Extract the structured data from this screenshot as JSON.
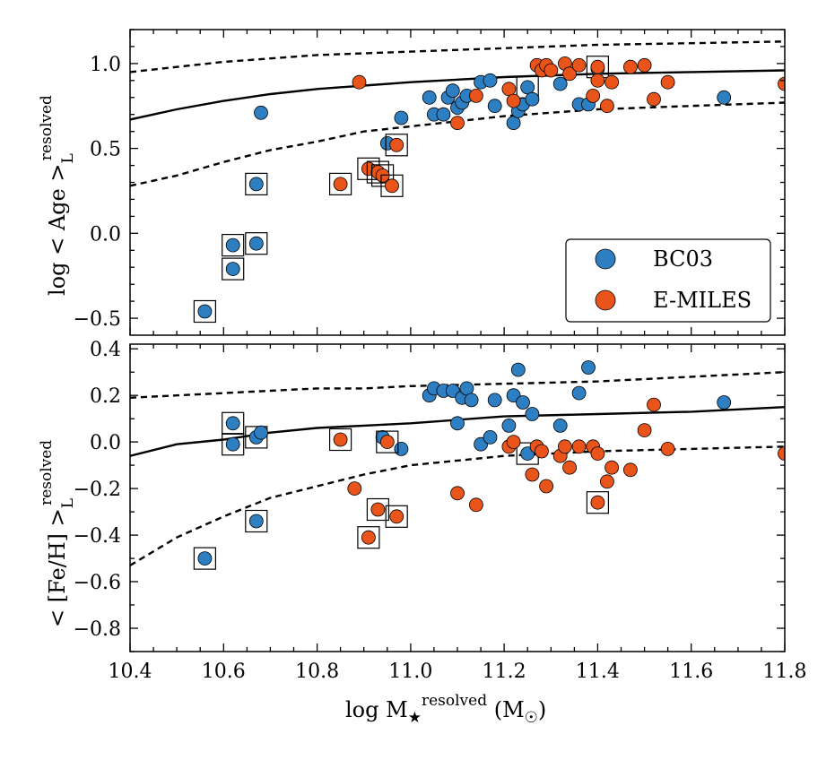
{
  "colors": {
    "bc03": "#2e7fc2",
    "emiles": "#e8541a",
    "edge": "#000000",
    "line": "#000000"
  },
  "chart_data": [
    {
      "type": "scatter",
      "panel": "top",
      "ylabel": {
        "main": "log < Age >",
        "sub": "L",
        "sup": "resolved"
      },
      "xlim": [
        10.4,
        11.8
      ],
      "ylim": [
        -0.6,
        1.2
      ],
      "yticks": [
        {
          "v": -0.5,
          "label": "−0.5"
        },
        {
          "v": 0.0,
          "label": "0.0"
        },
        {
          "v": 0.5,
          "label": "0.5"
        },
        {
          "v": 1.0,
          "label": "1.0"
        }
      ],
      "legend": {
        "position": "lower-right",
        "entries": [
          {
            "label": "BC03",
            "series": "bc03"
          },
          {
            "label": "E-MILES",
            "series": "emiles"
          }
        ]
      },
      "trend": {
        "median": [
          [
            10.4,
            0.67
          ],
          [
            10.5,
            0.73
          ],
          [
            10.6,
            0.78
          ],
          [
            10.7,
            0.82
          ],
          [
            10.8,
            0.85
          ],
          [
            10.9,
            0.87
          ],
          [
            11.0,
            0.89
          ],
          [
            11.2,
            0.92
          ],
          [
            11.4,
            0.94
          ],
          [
            11.6,
            0.95
          ],
          [
            11.8,
            0.96
          ]
        ],
        "upper": [
          [
            10.4,
            0.95
          ],
          [
            10.5,
            0.98
          ],
          [
            10.6,
            1.01
          ],
          [
            10.7,
            1.03
          ],
          [
            10.8,
            1.05
          ],
          [
            10.9,
            1.06
          ],
          [
            11.0,
            1.07
          ],
          [
            11.2,
            1.09
          ],
          [
            11.4,
            1.11
          ],
          [
            11.6,
            1.12
          ],
          [
            11.8,
            1.13
          ]
        ],
        "lower": [
          [
            10.4,
            0.28
          ],
          [
            10.5,
            0.34
          ],
          [
            10.6,
            0.42
          ],
          [
            10.7,
            0.49
          ],
          [
            10.8,
            0.54
          ],
          [
            10.9,
            0.6
          ],
          [
            11.0,
            0.63
          ],
          [
            11.2,
            0.69
          ],
          [
            11.4,
            0.73
          ],
          [
            11.6,
            0.75
          ],
          [
            11.8,
            0.77
          ]
        ]
      },
      "series": [
        {
          "name": "BC03",
          "key": "bc03",
          "points": [
            [
              10.56,
              -0.46,
              1
            ],
            [
              10.62,
              -0.07,
              1
            ],
            [
              10.62,
              -0.21,
              1
            ],
            [
              10.67,
              0.29,
              1
            ],
            [
              10.67,
              -0.06,
              1
            ],
            [
              10.68,
              0.71,
              0
            ],
            [
              10.95,
              0.53,
              0
            ],
            [
              10.98,
              0.68,
              0
            ],
            [
              11.04,
              0.8,
              0
            ],
            [
              11.05,
              0.7,
              0
            ],
            [
              11.07,
              0.7,
              0
            ],
            [
              11.08,
              0.8,
              0
            ],
            [
              11.09,
              0.84,
              0
            ],
            [
              11.1,
              0.74,
              0
            ],
            [
              11.11,
              0.77,
              0
            ],
            [
              11.12,
              0.81,
              0
            ],
            [
              11.15,
              0.89,
              0
            ],
            [
              11.17,
              0.9,
              0
            ],
            [
              11.18,
              0.75,
              0
            ],
            [
              11.22,
              0.65,
              0
            ],
            [
              11.23,
              0.72,
              0
            ],
            [
              11.24,
              0.76,
              0
            ],
            [
              11.25,
              0.86,
              1
            ],
            [
              11.26,
              0.79,
              0
            ],
            [
              11.32,
              0.88,
              0
            ],
            [
              11.36,
              0.76,
              0
            ],
            [
              11.38,
              0.76,
              0
            ],
            [
              11.4,
              0.97,
              0
            ],
            [
              11.67,
              0.8,
              0
            ]
          ]
        },
        {
          "name": "E-MILES",
          "key": "emiles",
          "points": [
            [
              10.85,
              0.29,
              1
            ],
            [
              10.89,
              0.89,
              0
            ],
            [
              10.91,
              0.38,
              1
            ],
            [
              10.93,
              0.36,
              1
            ],
            [
              10.94,
              0.34,
              1
            ],
            [
              10.96,
              0.28,
              1
            ],
            [
              10.97,
              0.52,
              1
            ],
            [
              11.1,
              0.65,
              0
            ],
            [
              11.14,
              0.81,
              0
            ],
            [
              11.21,
              0.85,
              0
            ],
            [
              11.22,
              0.78,
              0
            ],
            [
              11.27,
              0.99,
              0
            ],
            [
              11.28,
              0.96,
              0
            ],
            [
              11.29,
              0.99,
              0
            ],
            [
              11.3,
              0.96,
              0
            ],
            [
              11.33,
              1.0,
              0
            ],
            [
              11.34,
              0.94,
              0
            ],
            [
              11.36,
              0.99,
              0
            ],
            [
              11.39,
              0.81,
              0
            ],
            [
              11.4,
              0.98,
              1
            ],
            [
              11.4,
              0.9,
              0
            ],
            [
              11.42,
              0.75,
              0
            ],
            [
              11.43,
              0.89,
              0
            ],
            [
              11.47,
              0.98,
              0
            ],
            [
              11.5,
              0.99,
              0
            ],
            [
              11.52,
              0.79,
              0
            ],
            [
              11.55,
              0.89,
              0
            ],
            [
              11.8,
              0.88,
              0
            ]
          ]
        }
      ]
    },
    {
      "type": "scatter",
      "panel": "bottom",
      "xlabel": {
        "main": "log M",
        "star": "★",
        "sup": "resolved",
        "unit": " (M",
        "sun": "☉",
        "close": ")"
      },
      "ylabel": {
        "main": "< [Fe/H] >",
        "sub": "L",
        "sup": "resolved"
      },
      "xlim": [
        10.4,
        11.8
      ],
      "ylim": [
        -0.9,
        0.42
      ],
      "xticks": [
        {
          "v": 10.4,
          "label": "10.4"
        },
        {
          "v": 10.6,
          "label": "10.6"
        },
        {
          "v": 10.8,
          "label": "10.8"
        },
        {
          "v": 11.0,
          "label": "11.0"
        },
        {
          "v": 11.2,
          "label": "11.2"
        },
        {
          "v": 11.4,
          "label": "11.4"
        },
        {
          "v": 11.6,
          "label": "11.6"
        },
        {
          "v": 11.8,
          "label": "11.8"
        }
      ],
      "yticks": [
        {
          "v": -0.8,
          "label": "−0.8"
        },
        {
          "v": -0.6,
          "label": "−0.6"
        },
        {
          "v": -0.4,
          "label": "−0.4"
        },
        {
          "v": -0.2,
          "label": "−0.2"
        },
        {
          "v": 0.0,
          "label": "0.0"
        },
        {
          "v": 0.2,
          "label": "0.2"
        },
        {
          "v": 0.4,
          "label": "0.4"
        }
      ],
      "trend": {
        "median": [
          [
            10.4,
            -0.06
          ],
          [
            10.5,
            -0.01
          ],
          [
            10.6,
            0.01
          ],
          [
            10.7,
            0.04
          ],
          [
            10.8,
            0.06
          ],
          [
            10.9,
            0.07
          ],
          [
            11.0,
            0.08
          ],
          [
            11.2,
            0.11
          ],
          [
            11.4,
            0.12
          ],
          [
            11.6,
            0.13
          ],
          [
            11.8,
            0.15
          ]
        ],
        "upper": [
          [
            10.4,
            0.19
          ],
          [
            10.5,
            0.2
          ],
          [
            10.6,
            0.21
          ],
          [
            10.7,
            0.22
          ],
          [
            10.8,
            0.23
          ],
          [
            10.9,
            0.23
          ],
          [
            11.0,
            0.24
          ],
          [
            11.2,
            0.25
          ],
          [
            11.4,
            0.26
          ],
          [
            11.6,
            0.28
          ],
          [
            11.8,
            0.3
          ]
        ],
        "lower": [
          [
            10.4,
            -0.53
          ],
          [
            10.5,
            -0.41
          ],
          [
            10.6,
            -0.32
          ],
          [
            10.7,
            -0.24
          ],
          [
            10.8,
            -0.19
          ],
          [
            10.9,
            -0.14
          ],
          [
            11.0,
            -0.1
          ],
          [
            11.2,
            -0.06
          ],
          [
            11.4,
            -0.04
          ],
          [
            11.6,
            -0.03
          ],
          [
            11.8,
            -0.02
          ]
        ]
      },
      "series": [
        {
          "name": "BC03",
          "key": "bc03",
          "points": [
            [
              10.56,
              -0.5,
              1
            ],
            [
              10.62,
              0.08,
              1
            ],
            [
              10.62,
              -0.01,
              1
            ],
            [
              10.67,
              0.02,
              1
            ],
            [
              10.68,
              0.04,
              0
            ],
            [
              10.67,
              -0.34,
              1
            ],
            [
              10.94,
              0.02,
              0
            ],
            [
              10.98,
              -0.03,
              0
            ],
            [
              11.04,
              0.2,
              0
            ],
            [
              11.05,
              0.23,
              0
            ],
            [
              11.07,
              0.22,
              0
            ],
            [
              11.09,
              0.22,
              0
            ],
            [
              11.1,
              0.08,
              0
            ],
            [
              11.11,
              0.19,
              0
            ],
            [
              11.12,
              0.23,
              0
            ],
            [
              11.13,
              0.18,
              0
            ],
            [
              11.15,
              -0.01,
              0
            ],
            [
              11.17,
              0.02,
              0
            ],
            [
              11.18,
              0.18,
              0
            ],
            [
              11.21,
              0.07,
              0
            ],
            [
              11.22,
              0.2,
              0
            ],
            [
              11.23,
              0.31,
              0
            ],
            [
              11.24,
              0.17,
              0
            ],
            [
              11.25,
              -0.05,
              1
            ],
            [
              11.26,
              0.12,
              0
            ],
            [
              11.32,
              0.07,
              0
            ],
            [
              11.36,
              0.21,
              0
            ],
            [
              11.38,
              0.32,
              0
            ],
            [
              11.67,
              0.17,
              0
            ]
          ]
        },
        {
          "name": "E-MILES",
          "key": "emiles",
          "points": [
            [
              10.85,
              0.01,
              1
            ],
            [
              10.88,
              -0.2,
              0
            ],
            [
              10.91,
              -0.41,
              1
            ],
            [
              10.93,
              -0.29,
              1
            ],
            [
              10.95,
              0.0,
              1
            ],
            [
              10.97,
              -0.32,
              1
            ],
            [
              11.1,
              -0.22,
              0
            ],
            [
              11.14,
              -0.27,
              0
            ],
            [
              11.21,
              -0.02,
              0
            ],
            [
              11.22,
              0.0,
              0
            ],
            [
              11.26,
              -0.14,
              0
            ],
            [
              11.27,
              -0.02,
              0
            ],
            [
              11.28,
              -0.04,
              0
            ],
            [
              11.29,
              -0.19,
              0
            ],
            [
              11.32,
              -0.06,
              0
            ],
            [
              11.33,
              -0.02,
              0
            ],
            [
              11.34,
              -0.11,
              0
            ],
            [
              11.36,
              -0.02,
              0
            ],
            [
              11.39,
              -0.02,
              0
            ],
            [
              11.4,
              -0.05,
              0
            ],
            [
              11.4,
              -0.26,
              1
            ],
            [
              11.42,
              -0.17,
              0
            ],
            [
              11.43,
              -0.11,
              0
            ],
            [
              11.47,
              -0.12,
              0
            ],
            [
              11.5,
              0.05,
              0
            ],
            [
              11.52,
              0.16,
              0
            ],
            [
              11.55,
              -0.03,
              0
            ],
            [
              11.8,
              -0.05,
              0
            ]
          ]
        }
      ]
    }
  ]
}
